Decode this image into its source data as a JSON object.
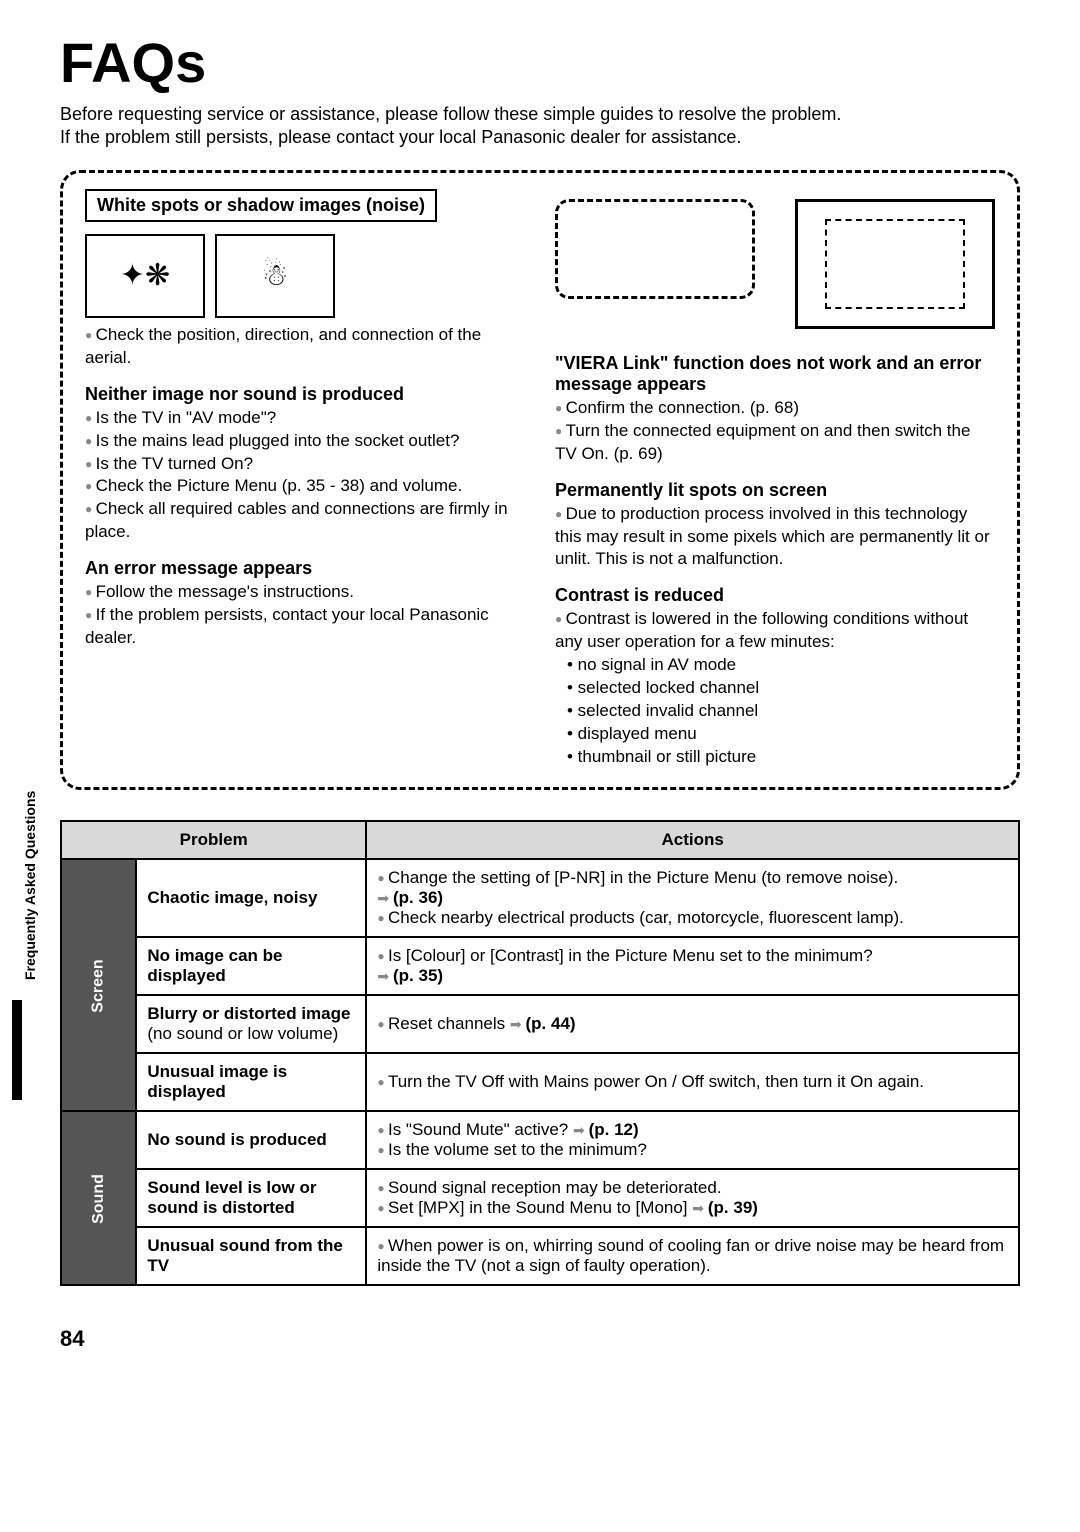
{
  "title": "FAQs",
  "intro": "Before requesting service or assistance, please follow these simple guides to resolve the problem.\nIf the problem still persists, please contact your local Panasonic dealer for assistance.",
  "sideLabel": "Frequently Asked Questions",
  "pageNum": "84",
  "dash": {
    "left": {
      "box1": {
        "title": "White spots or shadow images (noise)",
        "bullet": "Check the position, direction, and connection of the aerial."
      },
      "sec2": {
        "title": "Neither image nor sound is produced",
        "b1": "Is the TV in \"AV mode\"?",
        "b2": "Is the mains lead plugged into the socket outlet?",
        "b3": "Is the TV turned On?",
        "b4": "Check the Picture Menu (p. 35 - 38) and volume.",
        "b5": "Check all required cables and connections are firmly in place."
      },
      "sec3": {
        "title": "An error message appears",
        "b1": "Follow the message's instructions.",
        "b2": "If the problem persists, contact your local Panasonic dealer."
      }
    },
    "right": {
      "sec1": {
        "title": "\"VIERA Link\" function does not work and an error message appears",
        "b1": "Confirm the connection. (p. 68)",
        "b2": "Turn the connected equipment on and then switch the TV On. (p. 69)"
      },
      "sec2": {
        "title": "Permanently lit spots on screen",
        "b1": "Due to production process involved in this technology this may result in some pixels which are permanently lit or unlit. This is not a malfunction."
      },
      "sec3": {
        "title": "Contrast is reduced",
        "b1": "Contrast is lowered in the following conditions without any user operation for a few minutes:",
        "s1": "• no signal in AV mode",
        "s2": "• selected locked channel",
        "s3": "• selected invalid channel",
        "s4": "• displayed menu",
        "s5": "• thumbnail or still picture"
      }
    }
  },
  "table": {
    "h1": "Problem",
    "h2": "Actions",
    "cat1": "Screen",
    "cat2": "Sound",
    "rows": [
      {
        "p": "Chaotic image, noisy",
        "a1": "Change the setting of [P-NR] in the Picture Menu (to remove noise).",
        "aRef": "(p. 36)",
        "a2": "Check nearby electrical products (car, motorcycle, fluorescent lamp)."
      },
      {
        "p": "No image can be displayed",
        "a1": "Is [Colour] or [Contrast] in the Picture Menu set to the minimum?",
        "aRef": "(p. 35)"
      },
      {
        "p": "Blurry or distorted image",
        "pNote": "(no sound or low volume)",
        "a1": "Reset channels",
        "aRef": "(p. 44)"
      },
      {
        "p": "Unusual image is displayed",
        "a1": "Turn the TV Off with Mains power On / Off switch, then turn it On again."
      },
      {
        "p": "No sound is produced",
        "a1": "Is \"Sound Mute\" active?",
        "aRef": "(p. 12)",
        "a2": "Is the volume set to the minimum?"
      },
      {
        "p": "Sound level is low or sound is distorted",
        "a1": "Sound signal reception may be deteriorated.",
        "a2": "Set [MPX] in the Sound Menu to [Mono]",
        "aRef2": "(p. 39)"
      },
      {
        "p": "Unusual sound from the TV",
        "a1": "When power is on, whirring sound of cooling fan or drive noise may be heard from inside the TV (not a sign of faulty operation)."
      }
    ]
  }
}
